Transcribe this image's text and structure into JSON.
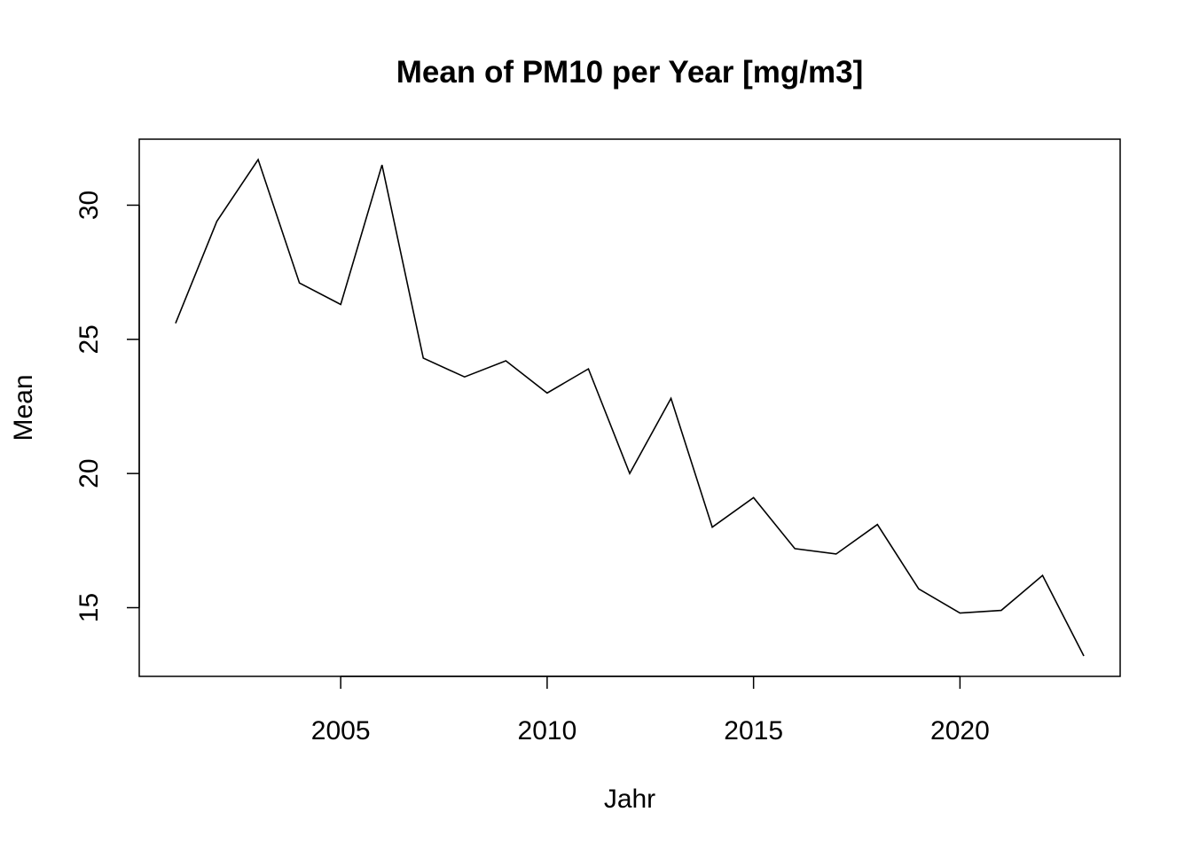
{
  "chart_data": {
    "type": "line",
    "title": "Mean of PM10 per Year [mg/m3]",
    "xlabel": "Jahr",
    "ylabel": "Mean",
    "x": [
      2001,
      2002,
      2003,
      2004,
      2005,
      2006,
      2007,
      2008,
      2009,
      2010,
      2011,
      2012,
      2013,
      2014,
      2015,
      2016,
      2017,
      2018,
      2019,
      2020,
      2021,
      2022,
      2023
    ],
    "series": [
      {
        "values": [
          25.6,
          29.4,
          31.7,
          27.1,
          26.3,
          31.5,
          24.3,
          23.6,
          24.2,
          23.0,
          23.9,
          20.0,
          22.8,
          18.0,
          19.1,
          17.2,
          17.0,
          18.1,
          15.7,
          14.8,
          14.9,
          16.2,
          13.2
        ]
      }
    ],
    "x_ticks": [
      2005,
      2010,
      2015,
      2020
    ],
    "y_ticks": [
      15,
      20,
      25,
      30
    ],
    "xlim": [
      2000.12,
      2023.88
    ],
    "ylim": [
      12.44,
      32.46
    ],
    "grid": false,
    "legend": "none",
    "line_color": "#000000"
  }
}
